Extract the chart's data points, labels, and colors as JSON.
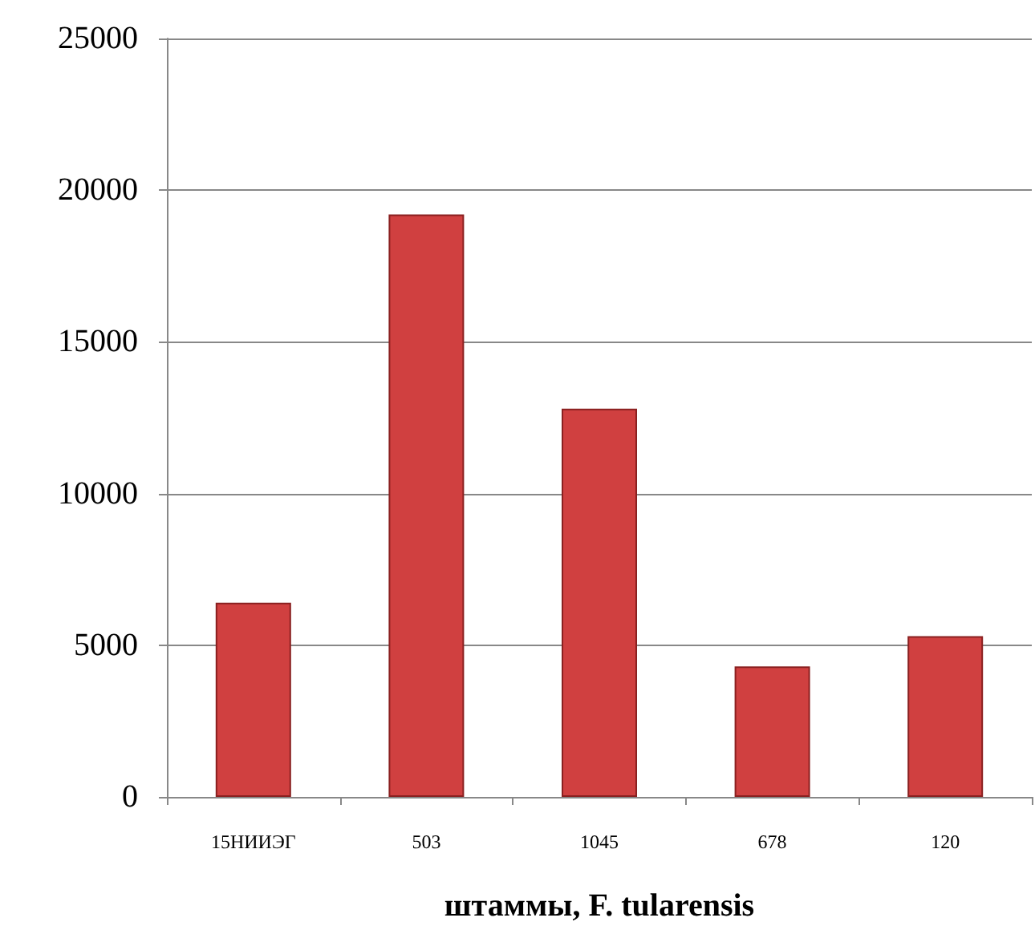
{
  "chart_data": {
    "type": "bar",
    "xlabel": "штаммы, F. tularensis",
    "categories": [
      "15НИИЭГ",
      "503",
      "1045",
      "678",
      "120"
    ],
    "values": [
      6400,
      19200,
      12800,
      4300,
      5300
    ],
    "color": "#d04040",
    "ylim": [
      0,
      25000
    ],
    "yticks": [
      0,
      5000,
      10000,
      15000,
      20000,
      25000
    ],
    "grid": "y"
  }
}
